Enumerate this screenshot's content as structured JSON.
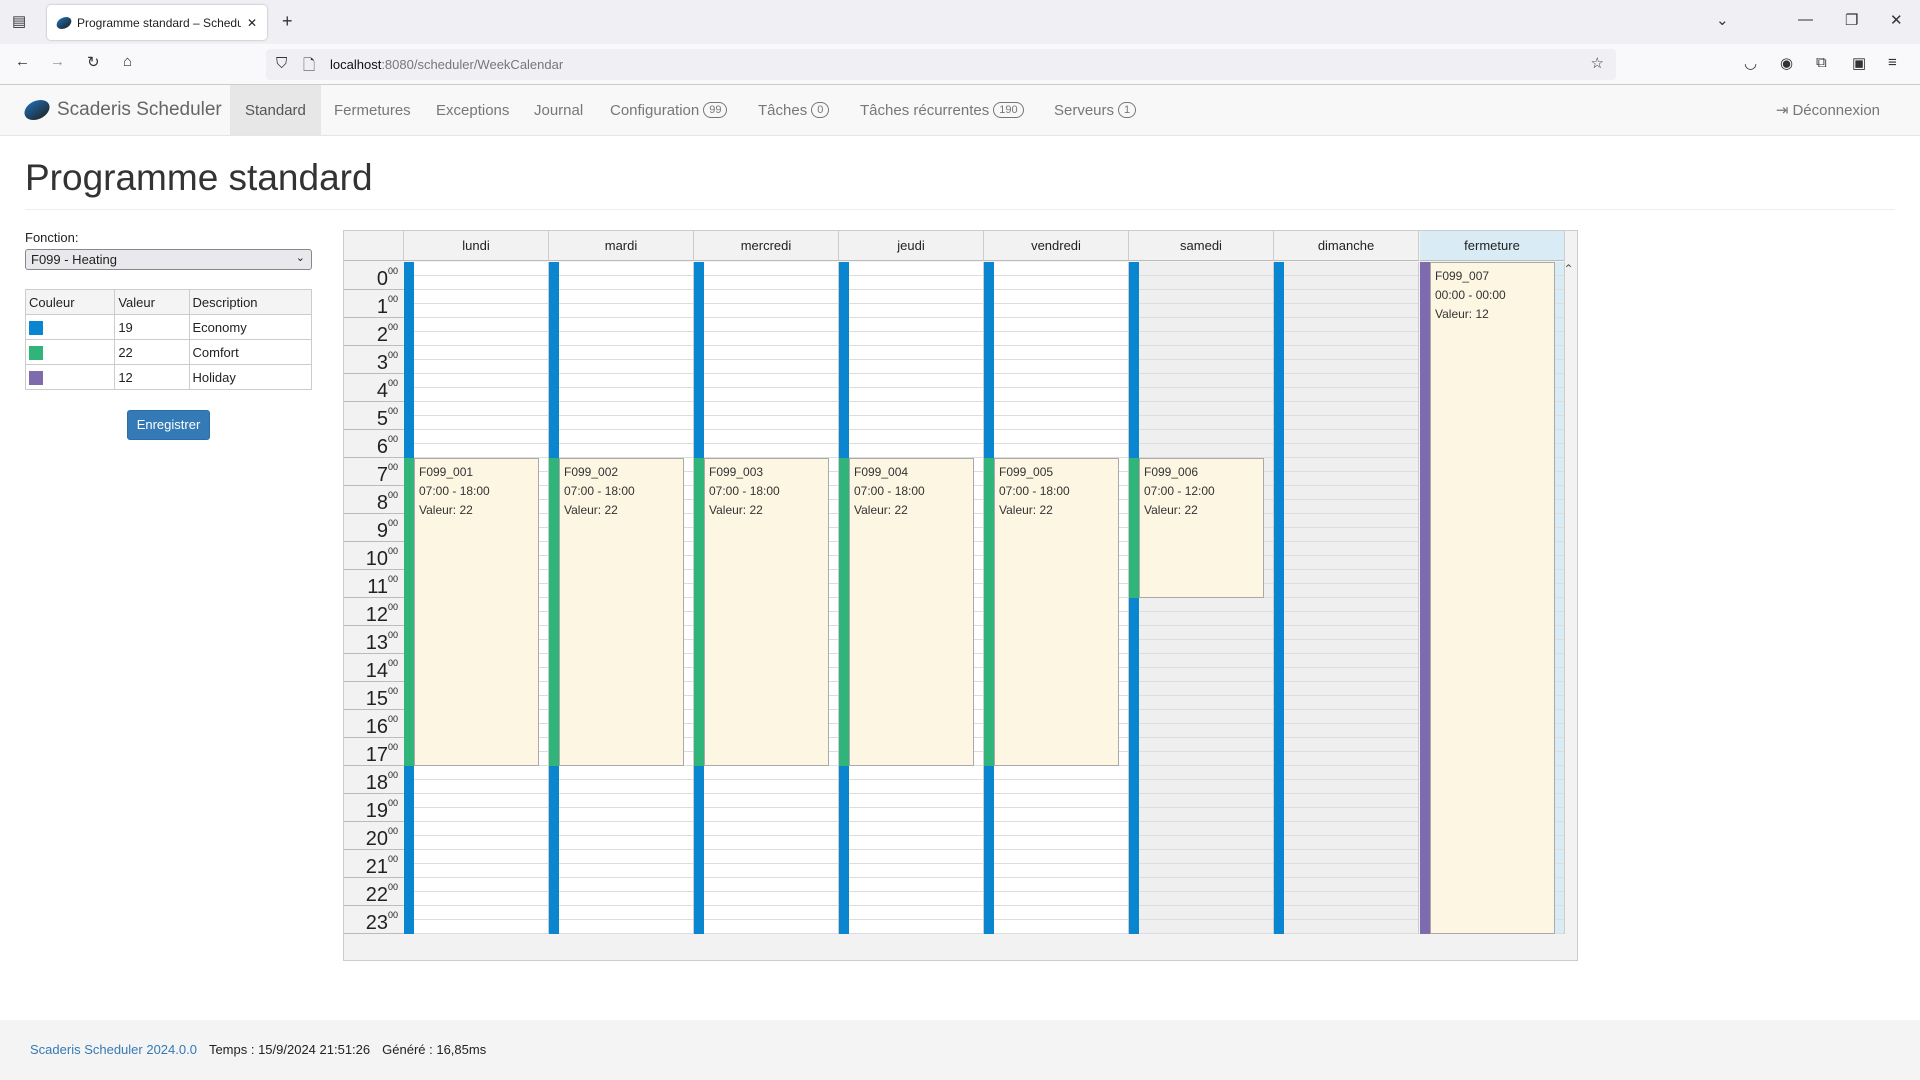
{
  "browser": {
    "tab_title": "Programme standard – Scheduler",
    "url_host": "localhost",
    "url_path": ":8080/scheduler/WeekCalendar"
  },
  "navbar": {
    "brand": "Scaderis Scheduler",
    "items": [
      {
        "label": "Standard",
        "badge": null,
        "active": true
      },
      {
        "label": "Fermetures",
        "badge": null
      },
      {
        "label": "Exceptions",
        "badge": null
      },
      {
        "label": "Journal",
        "badge": null
      },
      {
        "label": "Configuration",
        "badge": "99"
      },
      {
        "label": "Tâches",
        "badge": "0"
      },
      {
        "label": "Tâches récurrentes",
        "badge": "190"
      },
      {
        "label": "Serveurs",
        "badge": "1"
      }
    ],
    "logout": "Déconnexion"
  },
  "page": {
    "title": "Programme standard",
    "function_label": "Fonction:",
    "function_value": "F099 - Heating",
    "save": "Enregistrer"
  },
  "legend": {
    "headers": [
      "Couleur",
      "Valeur",
      "Description"
    ],
    "rows": [
      {
        "color": "#0a86d0",
        "value": "19",
        "description": "Economy"
      },
      {
        "color": "#30b47a",
        "value": "22",
        "description": "Comfort"
      },
      {
        "color": "#7e6bad",
        "value": "12",
        "description": "Holiday"
      }
    ]
  },
  "calendar": {
    "days": [
      "lundi",
      "mardi",
      "mercredi",
      "jeudi",
      "vendredi",
      "samedi",
      "dimanche",
      "fermeture"
    ],
    "hours": [
      "0",
      "1",
      "2",
      "3",
      "4",
      "5",
      "6",
      "7",
      "8",
      "9",
      "10",
      "11",
      "12",
      "13",
      "14",
      "15",
      "16",
      "17",
      "18",
      "19",
      "20",
      "21",
      "22",
      "23"
    ],
    "minutes": "00",
    "default_color": "#0a86d0",
    "events": [
      {
        "day": 0,
        "id": "F099_001",
        "time": "07:00 - 18:00",
        "value": "Valeur: 22",
        "start": 7,
        "end": 18,
        "color": "#30b47a"
      },
      {
        "day": 1,
        "id": "F099_002",
        "time": "07:00 - 18:00",
        "value": "Valeur: 22",
        "start": 7,
        "end": 18,
        "color": "#30b47a"
      },
      {
        "day": 2,
        "id": "F099_003",
        "time": "07:00 - 18:00",
        "value": "Valeur: 22",
        "start": 7,
        "end": 18,
        "color": "#30b47a"
      },
      {
        "day": 3,
        "id": "F099_004",
        "time": "07:00 - 18:00",
        "value": "Valeur: 22",
        "start": 7,
        "end": 18,
        "color": "#30b47a"
      },
      {
        "day": 4,
        "id": "F099_005",
        "time": "07:00 - 18:00",
        "value": "Valeur: 22",
        "start": 7,
        "end": 18,
        "color": "#30b47a"
      },
      {
        "day": 5,
        "id": "F099_006",
        "time": "07:00 - 12:00",
        "value": "Valeur: 22",
        "start": 7,
        "end": 12,
        "color": "#30b47a"
      },
      {
        "day": 7,
        "id": "F099_007",
        "time": "00:00 - 00:00",
        "value": "Valeur: 12",
        "start": 0,
        "end": 24,
        "color": "#7e6bad"
      }
    ]
  },
  "footer": {
    "version": "Scaderis Scheduler 2024.0.0",
    "time": "Temps : 15/9/2024 21:51:26",
    "generated": "Généré : 16,85ms"
  }
}
